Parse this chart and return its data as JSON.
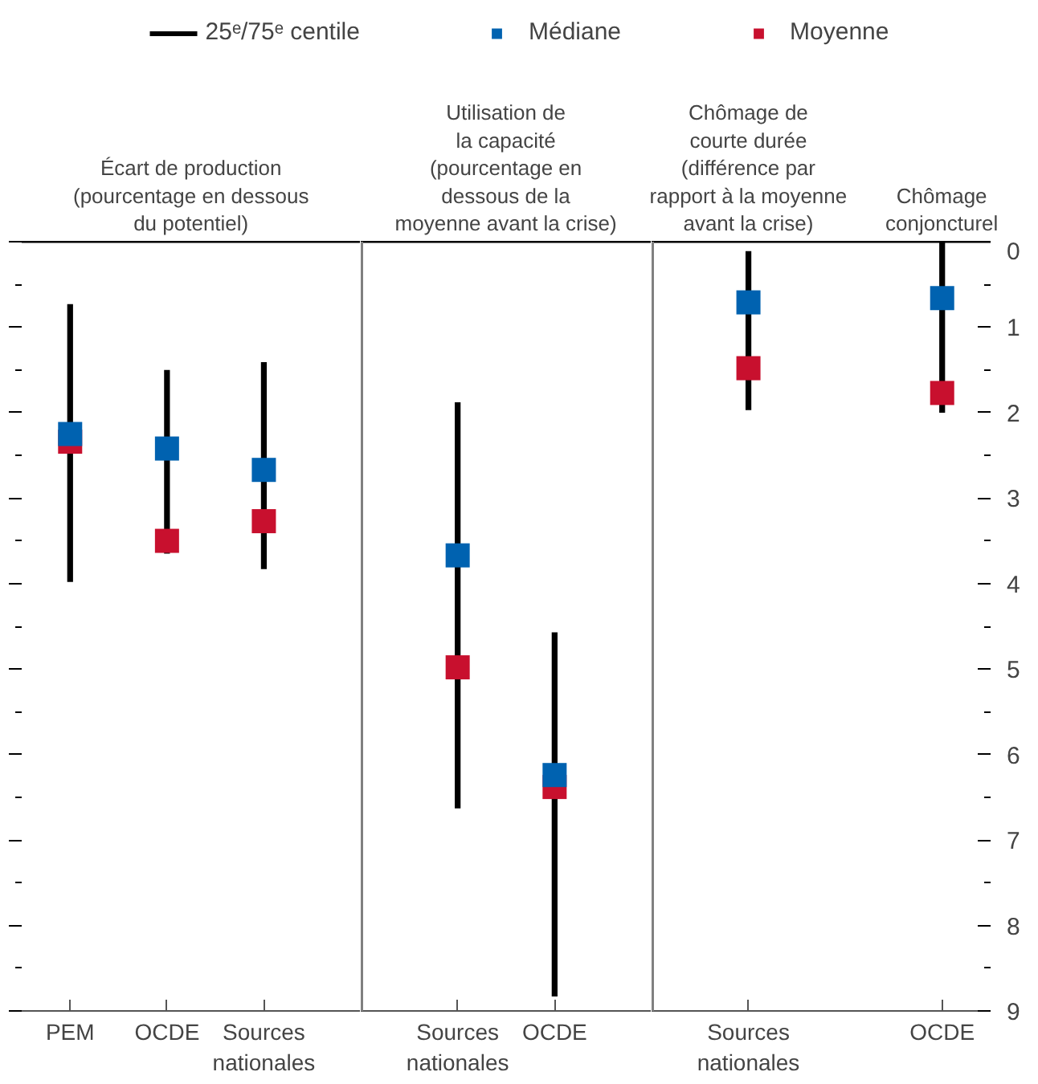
{
  "chart_data": [
    {
      "type": "scatter",
      "title": "Écart de production\n(pourcentage en dessous\ndu potentiel)",
      "categories": [
        "PEM",
        "OCDE",
        "Sources\nnationales"
      ],
      "ylim": [
        9,
        0
      ],
      "yticks": [
        {
          "value": 0,
          "label": null
        },
        {
          "value": 0.5,
          "label": null
        },
        {
          "value": 1,
          "label": null
        },
        {
          "value": 1.5,
          "label": null
        },
        {
          "value": 2,
          "label": null
        },
        {
          "value": 2.5,
          "label": null
        },
        {
          "value": 3,
          "label": null
        },
        {
          "value": 3.5,
          "label": null
        },
        {
          "value": 4,
          "label": null
        },
        {
          "value": 4.5,
          "label": null
        },
        {
          "value": 5,
          "label": null
        },
        {
          "value": 5.5,
          "label": null
        },
        {
          "value": 6,
          "label": null
        },
        {
          "value": 6.5,
          "label": null
        },
        {
          "value": 7,
          "label": null
        },
        {
          "value": 7.5,
          "label": null
        },
        {
          "value": 8,
          "label": null
        },
        {
          "value": 8.5,
          "label": null
        },
        {
          "value": 9,
          "label": null
        }
      ],
      "tick_labels": "x",
      "series": [
        {
          "name": "25ᵉ/75ᵉ centile",
          "type": "bar",
          "color": "#000000",
          "base": [
            0.73,
            1.5,
            1.41
          ],
          "values": [
            3.25,
            2.15,
            2.42
          ]
        },
        {
          "name": "Médiane",
          "color": "#0062b0",
          "values": [
            2.25,
            2.42,
            2.67
          ]
        },
        {
          "name": "Moyenne",
          "color": "#c8102e",
          "values": [
            2.34,
            3.5,
            3.27
          ]
        }
      ],
      "marker": "square",
      "legend": "top"
    },
    {
      "type": "scatter",
      "title": "Utilisation de\nla capacité\n(pourcentage en\ndessous de la\nmoyenne avant la crise)",
      "categories": [
        "Sources\nnationales",
        "OCDE"
      ],
      "ylim": [
        9,
        0
      ],
      "tick_labels": "x",
      "series": [
        {
          "type": "bar",
          "color": "#000000",
          "base": [
            1.88,
            4.57
          ],
          "values": [
            4.75,
            4.26
          ]
        },
        {
          "color": "#0062b0",
          "values": [
            3.67,
            6.24
          ]
        },
        {
          "color": "#c8102e",
          "values": [
            4.98,
            6.38
          ]
        }
      ],
      "marker": "square"
    },
    {
      "type": "scatter",
      "annotations": [
        "Chômage de\ncourte durée\n(différence par\nrapport à la moyenne\navant la crise)",
        "Chômage\nconjoncturel"
      ],
      "categories": [
        "Sources\nnationales",
        null,
        "OCDE"
      ],
      "ylim": [
        9,
        0
      ],
      "yticks": [
        0,
        1,
        2,
        3,
        4,
        5,
        6,
        7,
        8,
        9,
        {
          "value": 0.5,
          "label": null
        },
        {
          "value": 1.5,
          "label": null
        },
        {
          "value": 2.5,
          "label": null
        },
        {
          "value": 3.5,
          "label": null
        },
        {
          "value": 4.5,
          "label": null
        },
        {
          "value": 5.5,
          "label": null
        },
        {
          "value": 6.5,
          "label": null
        },
        {
          "value": 7.5,
          "label": null
        },
        {
          "value": 8.5,
          "label": null
        }
      ],
      "series": [
        {
          "type": "bar",
          "color": "#000000",
          "base": [
            0.11,
            null,
            0
          ],
          "values": [
            1.86,
            null,
            2.0
          ]
        },
        {
          "color": "#0062b0",
          "values": [
            0.71,
            null,
            0.66
          ]
        },
        {
          "color": "#c8102e",
          "values": [
            1.48,
            null,
            1.77
          ]
        }
      ],
      "marker": "square"
    }
  ]
}
